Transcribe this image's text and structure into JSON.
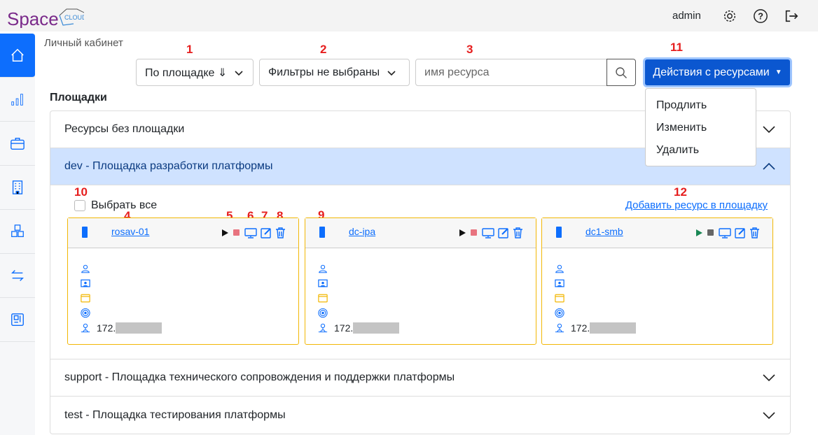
{
  "header": {
    "logo": "Space CLOUD",
    "user": "admin",
    "icons": [
      "gear-icon",
      "help-icon",
      "logout-icon"
    ]
  },
  "sidebar": {
    "items": [
      {
        "icon": "home-icon",
        "active": true
      },
      {
        "icon": "bar-chart-icon"
      },
      {
        "icon": "briefcase-icon"
      },
      {
        "icon": "building-icon"
      },
      {
        "icon": "boxes-icon"
      },
      {
        "icon": "arrows-exchange-icon"
      },
      {
        "icon": "motherboard-icon"
      }
    ]
  },
  "breadcrumb": "Личный кабинет",
  "annotations": {
    "a1": "1",
    "a2": "2",
    "a3": "3",
    "a4": "4",
    "a5": "5",
    "a6": "6",
    "a7": "7",
    "a8": "8",
    "a9": "9",
    "a10": "10",
    "a11": "11",
    "a12": "12"
  },
  "toolbar": {
    "sort_label": "По площадке ⇓",
    "filter_label": "Фильтры не выбраны",
    "search_placeholder": "имя ресурса",
    "actions_label": "Действия с ресурсами"
  },
  "actions_menu": [
    "Продлить",
    "Изменить",
    "Удалить"
  ],
  "section_title": "Площадки",
  "sites": [
    {
      "label": "Ресурсы без площадки",
      "expanded": false
    },
    {
      "label": "dev - Площадка разработки платформы",
      "expanded": true
    },
    {
      "label": "support - Площадка технического сопровождения и поддержки платформы",
      "expanded": false
    },
    {
      "label": "test - Площадка тестирования платформы",
      "expanded": false
    }
  ],
  "dev": {
    "select_all": "Выбрать все",
    "add_resource": "Добавить ресурс в площадку",
    "resources": [
      {
        "name": "rosav-01",
        "ip": "172.",
        "play_color": "#111111",
        "stop_color": "#e8737f"
      },
      {
        "name": "dc-ipa",
        "ip": "172.",
        "play_color": "#111111",
        "stop_color": "#e8737f"
      },
      {
        "name": "dc1-smb",
        "ip": "172.",
        "play_color": "#198754",
        "stop_color": "#666666"
      }
    ]
  }
}
